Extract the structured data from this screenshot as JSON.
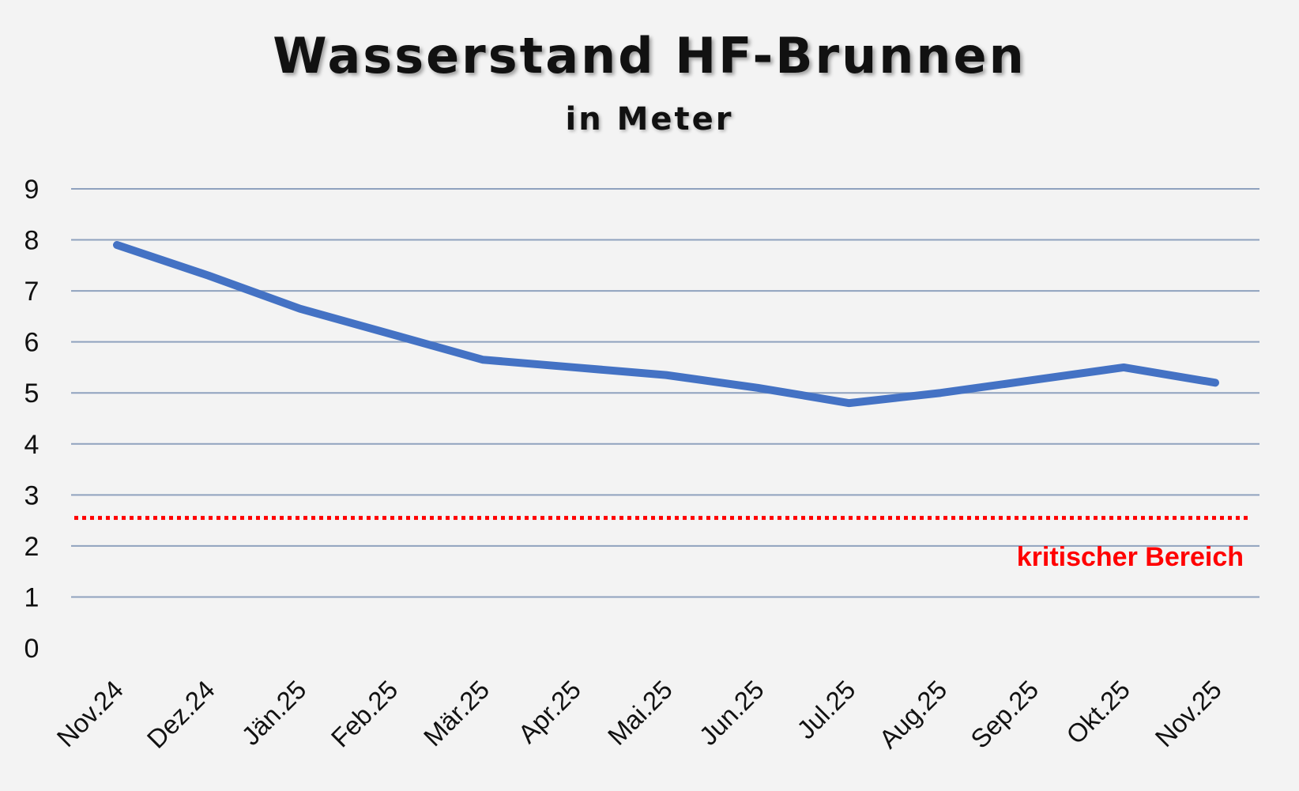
{
  "chart_data": {
    "type": "line",
    "title": "Wasserstand HF-Brunnen",
    "subtitle": "in Meter",
    "xlabel": "",
    "ylabel": "",
    "categories": [
      "Nov.24",
      "Dez.24",
      "Jän.25",
      "Feb.25",
      "Mär.25",
      "Apr.25",
      "Mai.25",
      "Jun.25",
      "Jul.25",
      "Aug.25",
      "Sep.25",
      "Okt.25",
      "Nov.25"
    ],
    "series": [
      {
        "values": [
          7.9,
          7.3,
          6.65,
          6.15,
          5.65,
          5.5,
          5.35,
          5.1,
          4.8,
          5.0,
          5.25,
          5.5,
          5.2
        ],
        "color": "#4472c4"
      }
    ],
    "ylim": [
      0,
      9
    ],
    "yticks": [
      "0",
      "1",
      "2",
      "3",
      "4",
      "5",
      "6",
      "7",
      "8",
      "9"
    ],
    "grid": true,
    "gridline_color": "#8fa2be",
    "threshold": {
      "value": 2.55,
      "label": "kritischer Bereich",
      "color": "#ff0000",
      "style": "dotted"
    }
  }
}
